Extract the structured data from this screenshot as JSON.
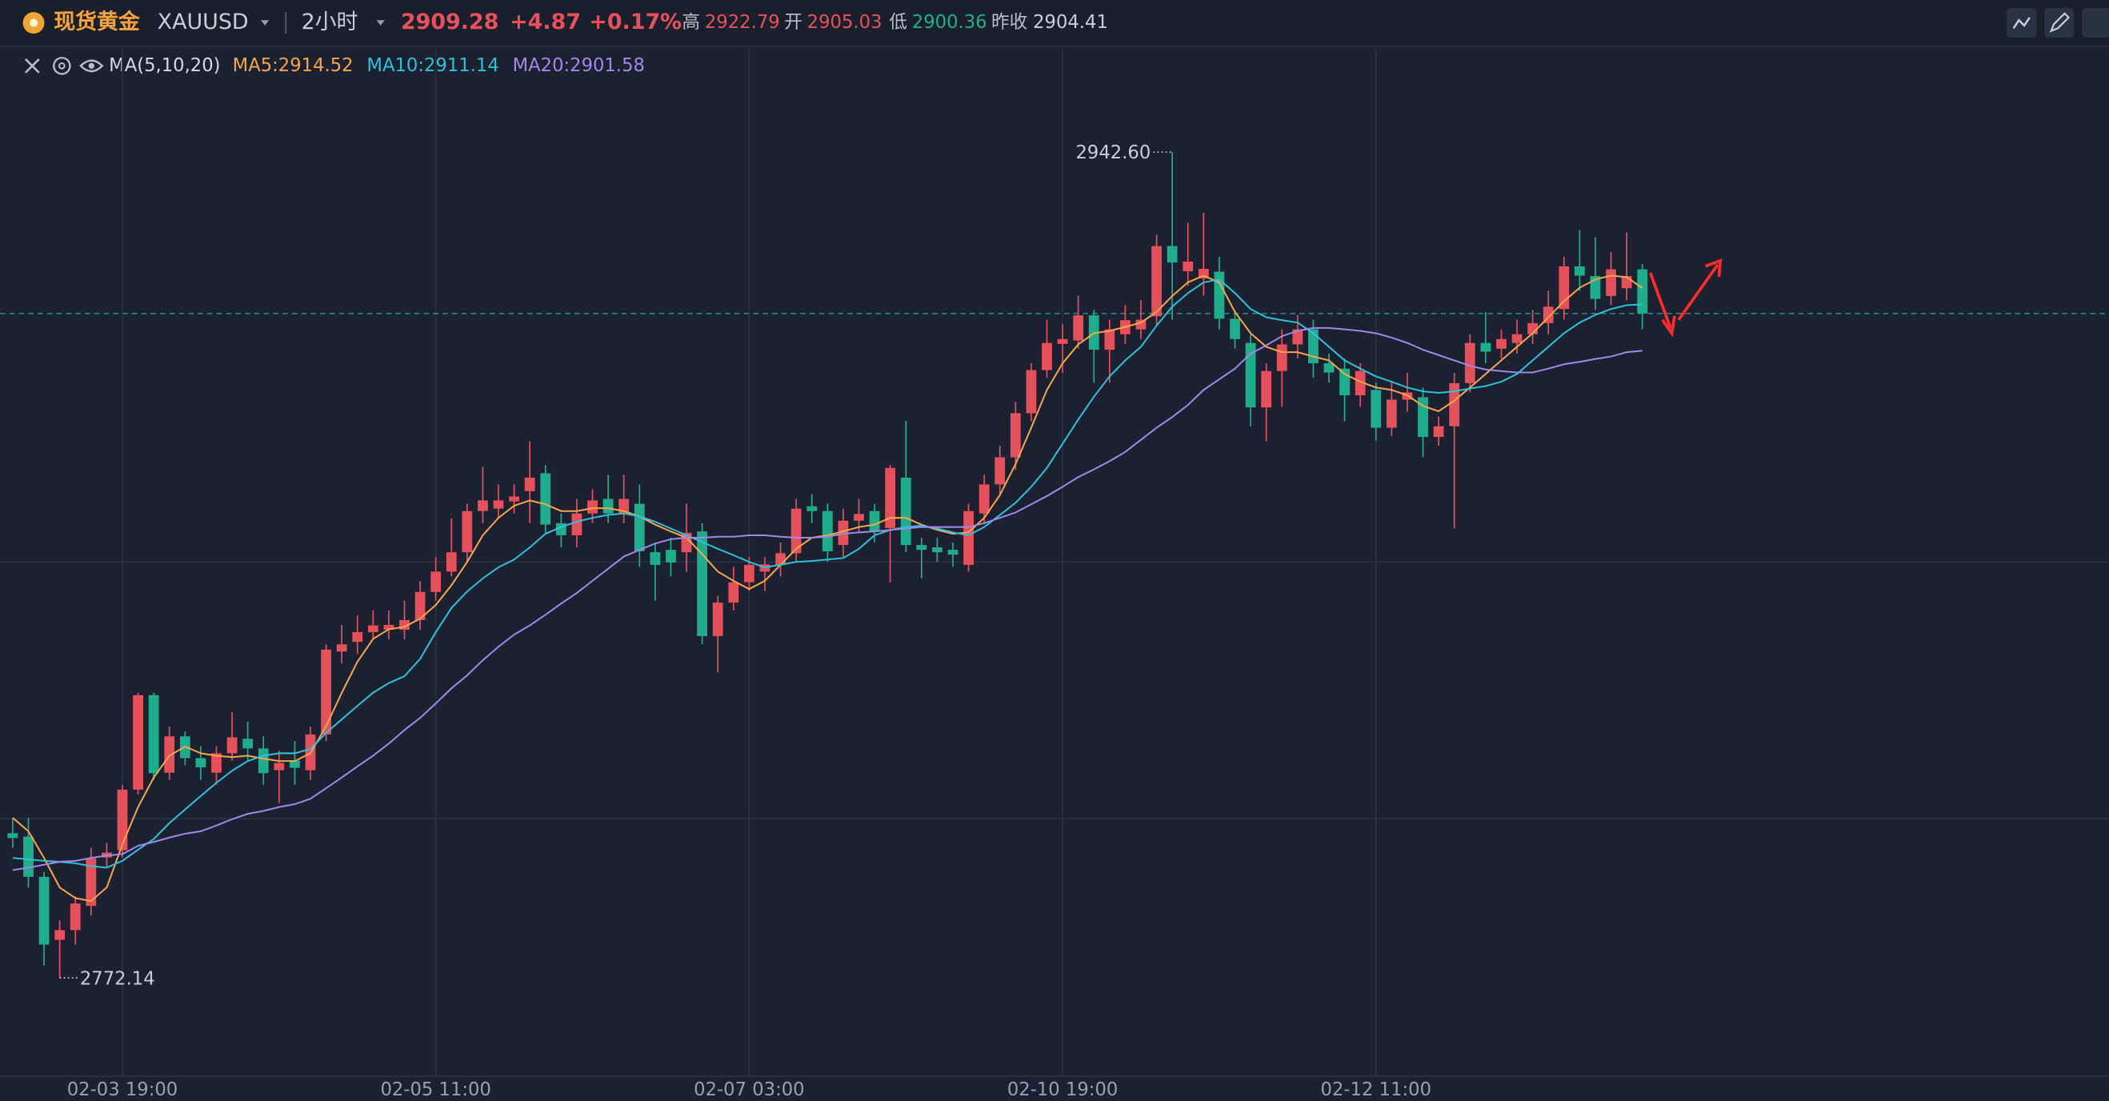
{
  "header": {
    "name": "现货黄金",
    "symbol": "XAUUSD",
    "interval": "2小时",
    "change": "+4.87",
    "change_pct": "+0.17%",
    "high_label": "高",
    "high": 2922.79,
    "open_label": "开",
    "open": 2905.03,
    "low_label": "低",
    "low": 2900.36,
    "prev_close_label": "昨收",
    "prev_close": 2904.41
  },
  "chart_data": {
    "type": "candlestick",
    "indicator": "MA(5,10,20)",
    "categories": [
      null,
      null,
      null,
      null,
      null,
      null,
      null,
      "02-03 19:00",
      null,
      null,
      null,
      null,
      null,
      null,
      null,
      null,
      null,
      null,
      null,
      null,
      null,
      null,
      null,
      null,
      null,
      null,
      null,
      "02-05 11:00",
      null,
      null,
      null,
      null,
      null,
      null,
      null,
      null,
      null,
      null,
      null,
      null,
      null,
      null,
      null,
      null,
      null,
      null,
      null,
      "02-07 03:00",
      null,
      null,
      null,
      null,
      null,
      null,
      null,
      null,
      null,
      null,
      null,
      null,
      null,
      null,
      null,
      null,
      null,
      null,
      null,
      "02-10 19:00",
      null,
      null,
      null,
      null,
      null,
      null,
      null,
      null,
      null,
      null,
      null,
      null,
      null,
      null,
      null,
      null,
      null,
      null,
      null,
      "02-12 11:00",
      null,
      null,
      null,
      null,
      null,
      null,
      null,
      null,
      null,
      null,
      null,
      null,
      null,
      null,
      null,
      null,
      null
    ],
    "open": [
      2802,
      2801.3,
      2793,
      2780,
      2782,
      2787,
      2797,
      2798.5,
      2811,
      2830.5,
      2814.5,
      2822,
      2817.5,
      2814.5,
      2818.5,
      2821.5,
      2819.5,
      2815,
      2817,
      2815,
      2822.4,
      2839.5,
      2841.5,
      2843.5,
      2844,
      2844,
      2846,
      2851.8,
      2856,
      2860,
      2868.5,
      2869,
      2870.5,
      2872.6,
      2876.3,
      2866,
      2863.5,
      2868,
      2871,
      2868,
      2870,
      2860,
      2860.5,
      2860,
      2864.3,
      2842.7,
      2849.6,
      2853.8,
      2856,
      2857.4,
      2859.8,
      2869.5,
      2868.5,
      2861.5,
      2866.5,
      2868.5,
      2865,
      2875.4,
      2861.5,
      2861,
      2860.5,
      2857.4,
      2868,
      2874,
      2879.6,
      2888.7,
      2897.6,
      2903,
      2903.7,
      2908.9,
      2901.8,
      2905,
      2906,
      2908.7,
      2923.2,
      2918,
      2916.5,
      2917.9,
      2908.2,
      2903.2,
      2889.9,
      2897.4,
      2902.9,
      2906,
      2899,
      2897.9,
      2892.4,
      2893.5,
      2885.7,
      2891.5,
      2892,
      2883.8,
      2886,
      2894.9,
      2903.2,
      2902,
      2903.2,
      2905,
      2907.3,
      2910.2,
      2919,
      2917,
      2912.9,
      2914.5,
      2918.4
    ],
    "high": [
      2805,
      2805.2,
      2794,
      2784,
      2789,
      2799,
      2800,
      2812,
      2831,
      2831,
      2824,
      2823,
      2820,
      2820,
      2827,
      2825,
      2822,
      2819,
      2821,
      2824,
      2841,
      2845,
      2847,
      2848,
      2848,
      2850,
      2854,
      2859,
      2867,
      2870,
      2877.6,
      2874,
      2874,
      2882.9,
      2878,
      2868,
      2871,
      2873,
      2876,
      2876,
      2874,
      2862,
      2863,
      2870,
      2866,
      2851,
      2857,
      2859,
      2859,
      2862,
      2871,
      2872,
      2870,
      2869,
      2871,
      2870,
      2878,
      2887.1,
      2863,
      2863,
      2862,
      2870,
      2876,
      2882,
      2891,
      2899,
      2908,
      2907,
      2913,
      2910,
      2908,
      2911,
      2912,
      2925.5,
      2942.6,
      2928,
      2930.1,
      2921,
      2910,
      2905,
      2899,
      2906,
      2909,
      2908,
      2901,
      2900,
      2899,
      2895,
      2895,
      2897,
      2894,
      2888,
      2897,
      2905,
      2909.6,
      2906,
      2908,
      2910,
      2914,
      2921,
      2926.5,
      2925,
      2922,
      2926,
      2919.5
    ],
    "low": [
      2799,
      2790.8,
      2774.7,
      2772.14,
      2779,
      2785,
      2795,
      2797,
      2810,
      2813,
      2813,
      2816,
      2813,
      2812,
      2817,
      2817,
      2812,
      2808.2,
      2812,
      2813,
      2821,
      2837,
      2839,
      2842,
      2842,
      2842,
      2844,
      2850,
      2855,
      2858,
      2866,
      2867,
      2868,
      2866,
      2864,
      2861,
      2861,
      2866,
      2866,
      2866,
      2857,
      2850,
      2855,
      2856,
      2841,
      2835.2,
      2848,
      2852,
      2852,
      2855,
      2858,
      2866,
      2858,
      2859,
      2864,
      2862,
      2853.8,
      2860,
      2854.6,
      2858,
      2857,
      2856,
      2866,
      2872,
      2877,
      2887,
      2896,
      2897,
      2902,
      2895,
      2895,
      2903,
      2904,
      2907,
      2908,
      2915,
      2913,
      2906,
      2902,
      2886,
      2882.9,
      2890,
      2900,
      2896,
      2895,
      2887,
      2890,
      2883,
      2884,
      2889,
      2879.6,
      2882,
      2864.9,
      2893,
      2899,
      2900,
      2901,
      2903,
      2905,
      2908,
      2914,
      2910,
      2911,
      2912,
      2906
    ],
    "close": [
      2801,
      2793,
      2779,
      2782,
      2787.5,
      2796.8,
      2798,
      2811,
      2830.5,
      2814.4,
      2822,
      2817.5,
      2815.6,
      2818.5,
      2821.8,
      2819.5,
      2814.4,
      2816.5,
      2815.5,
      2822.4,
      2839.9,
      2841,
      2843.5,
      2844.9,
      2845,
      2846,
      2851.8,
      2856,
      2860,
      2868.5,
      2870.7,
      2870.7,
      2871.5,
      2875.4,
      2865.7,
      2863.5,
      2868,
      2870.7,
      2868,
      2871,
      2860.2,
      2857.4,
      2857.9,
      2864,
      2842.7,
      2849.6,
      2853.8,
      2857.4,
      2857.5,
      2859.8,
      2869,
      2868.5,
      2860.2,
      2866.5,
      2867.9,
      2864.3,
      2877.4,
      2861.5,
      2860.5,
      2860,
      2859.5,
      2868.5,
      2874,
      2879.6,
      2888.7,
      2897.6,
      2903.2,
      2904,
      2908.9,
      2901.8,
      2906,
      2907.9,
      2908,
      2923.2,
      2919.8,
      2920,
      2918.5,
      2908.2,
      2904,
      2889.9,
      2897.4,
      2902.9,
      2906,
      2899,
      2897.1,
      2892.4,
      2897.4,
      2885.7,
      2891.5,
      2893,
      2883.8,
      2886,
      2894.9,
      2903.2,
      2901.4,
      2904,
      2905,
      2907.3,
      2910.7,
      2919,
      2917.1,
      2912.3,
      2918.4,
      2917,
      2909.28
    ],
    "up_color": "#e5505b",
    "down_color": "#1fae8c",
    "series": [
      {
        "name": "MA5:2914.52",
        "color": "#f3a64b",
        "values": [
          2805.2,
          2802.4,
          2796.9,
          2790.8,
          2788.6,
          2788,
          2790.8,
          2799.7,
          2807.4,
          2813.5,
          2818,
          2819.9,
          2818.5,
          2818,
          2817.7,
          2818,
          2817.4,
          2816.9,
          2816.9,
          2818.5,
          2824.1,
          2831,
          2837.4,
          2842.1,
          2844.1,
          2844.6,
          2846.3,
          2849.1,
          2853.2,
          2858,
          2863.5,
          2867.1,
          2869.6,
          2870.7,
          2869.9,
          2868.5,
          2868.5,
          2869.1,
          2869.1,
          2868.5,
          2867.4,
          2865.7,
          2864.3,
          2863,
          2859.6,
          2856,
          2854.1,
          2852.4,
          2854.1,
          2857.4,
          2860.7,
          2863,
          2863.5,
          2864.3,
          2865.2,
          2865.7,
          2867.1,
          2867.1,
          2865.7,
          2864.6,
          2863.8,
          2864.1,
          2867.1,
          2871.8,
          2878.2,
          2885.7,
          2893.5,
          2899,
          2902.9,
          2905.2,
          2905.7,
          2906.5,
          2907.4,
          2909.6,
          2912.9,
          2915.7,
          2917.1,
          2915.7,
          2909.6,
          2905.2,
          2902.4,
          2901.3,
          2901.3,
          2900.4,
          2899.6,
          2896.8,
          2895.2,
          2894,
          2893.5,
          2892.4,
          2890.2,
          2889.1,
          2891.3,
          2894,
          2896.8,
          2899.6,
          2902.4,
          2905.2,
          2908.5,
          2911.8,
          2914.6,
          2916.3,
          2917.1,
          2916.8,
          2914.52
        ]
      },
      {
        "name": "MA10:2911.14",
        "color": "#2fc0d9",
        "values": [
          2796.9,
          2796.6,
          2796.3,
          2796.1,
          2795.8,
          2795.2,
          2794.9,
          2796.3,
          2798.6,
          2800.8,
          2804.1,
          2806.9,
          2809.7,
          2812.4,
          2814.9,
          2816.9,
          2818,
          2818.5,
          2818.5,
          2819.4,
          2822.7,
          2825.5,
          2828.3,
          2831,
          2833,
          2834.4,
          2838,
          2843.5,
          2848.5,
          2851.9,
          2854.6,
          2856.9,
          2858.5,
          2861,
          2863.8,
          2865.2,
          2866.3,
          2867.1,
          2867.7,
          2868,
          2867.4,
          2866.3,
          2864.9,
          2863.5,
          2862.1,
          2860.7,
          2859.4,
          2858,
          2856.9,
          2857.4,
          2858,
          2858.2,
          2858.5,
          2858.8,
          2860.7,
          2863.5,
          2864.6,
          2865.2,
          2865.5,
          2864.9,
          2864.1,
          2863.5,
          2865.2,
          2867.7,
          2870.2,
          2873.5,
          2877.4,
          2882.4,
          2887.4,
          2892.1,
          2896.3,
          2899.6,
          2902.4,
          2906.8,
          2910.7,
          2913.5,
          2915.7,
          2916.3,
          2913.5,
          2910.2,
          2908.5,
          2907.9,
          2907.4,
          2905.2,
          2902.4,
          2899.6,
          2897.9,
          2896.3,
          2895.2,
          2894,
          2893.2,
          2892.9,
          2893.2,
          2893.8,
          2894.3,
          2895.2,
          2896.8,
          2899.6,
          2902.4,
          2905.2,
          2907.4,
          2909,
          2910.2,
          2911,
          2911.14
        ]
      },
      {
        "name": "MA20:2901.58",
        "color": "#a087e8",
        "values": [
          2794.4,
          2794.9,
          2795.5,
          2796.1,
          2796.3,
          2796.9,
          2797.4,
          2797.7,
          2799.4,
          2800.2,
          2801.1,
          2801.9,
          2802.4,
          2803.6,
          2804.9,
          2806,
          2806.6,
          2807.4,
          2808,
          2809.1,
          2811.3,
          2813.5,
          2815.8,
          2818,
          2820.5,
          2823.3,
          2825.8,
          2828.8,
          2831.9,
          2834.6,
          2837.7,
          2840.5,
          2843,
          2844.9,
          2847.1,
          2849.4,
          2851.6,
          2854.1,
          2856.6,
          2859.1,
          2860.5,
          2861.8,
          2862.7,
          2863,
          2863,
          2863.2,
          2863.2,
          2863.5,
          2863.5,
          2863.2,
          2863,
          2863,
          2863.2,
          2863.8,
          2864.1,
          2864.3,
          2864.6,
          2864.9,
          2865.2,
          2865.2,
          2865.2,
          2865.2,
          2866,
          2867.1,
          2868.2,
          2869.9,
          2871.6,
          2873.5,
          2875.5,
          2877.1,
          2878.8,
          2880.7,
          2883.2,
          2885.7,
          2887.9,
          2890.4,
          2893.5,
          2895.7,
          2897.9,
          2901,
          2902.7,
          2904.6,
          2905.7,
          2906.3,
          2906.3,
          2906,
          2905.7,
          2905.2,
          2904.3,
          2903.2,
          2901.8,
          2900.7,
          2899.6,
          2898.5,
          2897.7,
          2897.4,
          2897.1,
          2897.1,
          2897.9,
          2898.8,
          2899.3,
          2899.9,
          2900.4,
          2901.3,
          2901.58
        ]
      }
    ],
    "ylim": [
      2752,
      2964
    ],
    "yticks": [
      2805,
      2858
    ],
    "grid": true,
    "last_price": 2909.28,
    "last_price_color": "#2a9d8f",
    "annotations": [
      {
        "value": 2942.6,
        "label": "2942.60"
      },
      {
        "value": 2772.14,
        "label": "2772.14"
      }
    ]
  }
}
